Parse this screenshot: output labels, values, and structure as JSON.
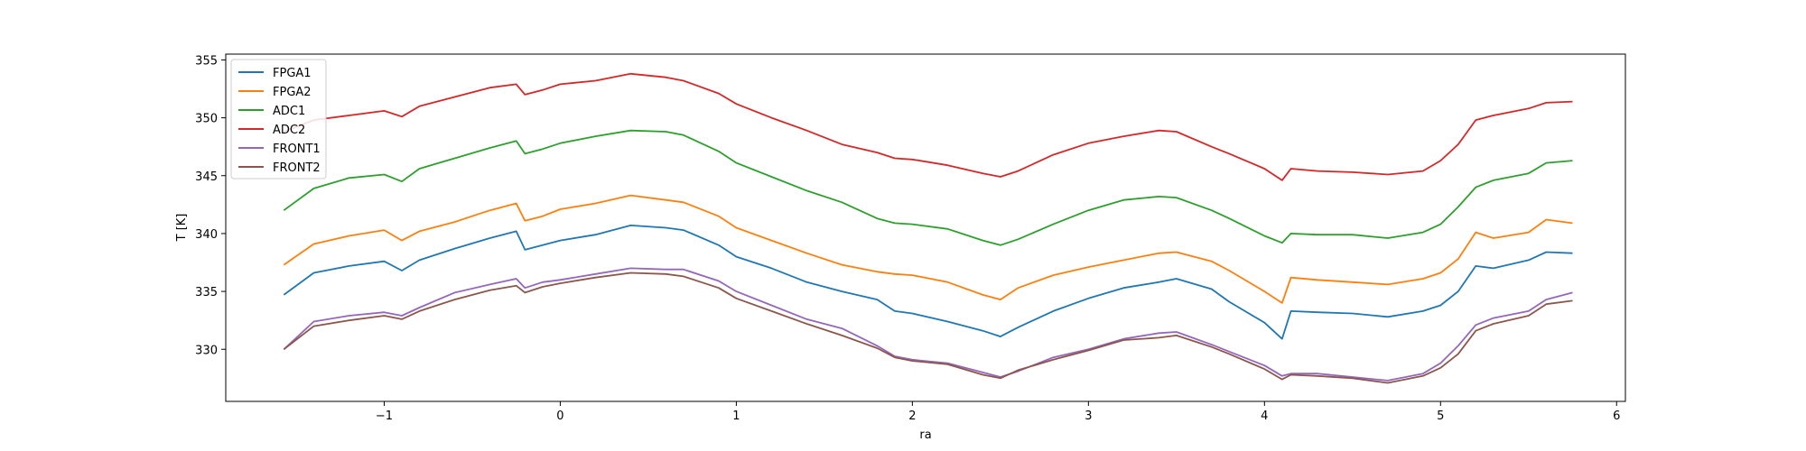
{
  "chart_data": {
    "type": "line",
    "title": "",
    "xlabel": "ra",
    "ylabel": "T [K]",
    "xlim": [
      -1.9,
      6.05
    ],
    "ylim": [
      325.5,
      355.5
    ],
    "xticks": [
      -1,
      0,
      1,
      2,
      3,
      4,
      5,
      6
    ],
    "xtick_labels": [
      "−1",
      "0",
      "1",
      "2",
      "3",
      "4",
      "5",
      "6"
    ],
    "yticks": [
      330,
      335,
      340,
      345,
      350,
      355
    ],
    "ytick_labels": [
      "330",
      "335",
      "340",
      "345",
      "350",
      "355"
    ],
    "grid": false,
    "legend_position": "upper-left",
    "x": [
      -1.57,
      -1.4,
      -1.2,
      -1.0,
      -0.9,
      -0.8,
      -0.6,
      -0.4,
      -0.25,
      -0.2,
      -0.1,
      0.0,
      0.2,
      0.4,
      0.6,
      0.7,
      0.9,
      1.0,
      1.2,
      1.4,
      1.6,
      1.8,
      1.9,
      2.0,
      2.2,
      2.4,
      2.5,
      2.6,
      2.8,
      3.0,
      3.2,
      3.4,
      3.5,
      3.7,
      3.8,
      4.0,
      4.1,
      4.15,
      4.3,
      4.5,
      4.7,
      4.9,
      5.0,
      5.1,
      5.2,
      5.3,
      5.5,
      5.6,
      5.75
    ],
    "series": [
      {
        "name": "FPGA1",
        "color": "#1f77b4",
        "values": [
          334.7,
          336.6,
          337.2,
          337.6,
          336.8,
          337.7,
          338.7,
          339.6,
          340.2,
          338.6,
          339.0,
          339.4,
          339.9,
          340.7,
          340.5,
          340.3,
          339.0,
          338.0,
          337.0,
          335.8,
          335.0,
          334.3,
          333.3,
          333.1,
          332.4,
          331.6,
          331.1,
          331.9,
          333.3,
          334.4,
          335.3,
          335.8,
          336.1,
          335.2,
          334.1,
          332.3,
          330.9,
          333.3,
          333.2,
          333.1,
          332.8,
          333.3,
          333.8,
          335.0,
          337.2,
          337.0,
          337.7,
          338.4,
          338.3
        ]
      },
      {
        "name": "FPGA2",
        "color": "#ff7f0e",
        "values": [
          337.3,
          339.1,
          339.8,
          340.3,
          339.4,
          340.2,
          341.0,
          342.0,
          342.6,
          341.1,
          341.5,
          342.1,
          342.6,
          343.3,
          342.9,
          342.7,
          341.5,
          340.5,
          339.4,
          338.3,
          337.3,
          336.7,
          336.5,
          336.4,
          335.8,
          334.7,
          334.3,
          335.3,
          336.4,
          337.1,
          337.7,
          338.3,
          338.4,
          337.6,
          336.8,
          335.0,
          334.0,
          336.2,
          336.0,
          335.8,
          335.6,
          336.1,
          336.6,
          337.8,
          340.1,
          339.6,
          340.1,
          341.2,
          340.9
        ]
      },
      {
        "name": "ADC1",
        "color": "#2ca02c",
        "values": [
          342.0,
          343.9,
          344.8,
          345.1,
          344.5,
          345.6,
          346.5,
          347.4,
          348.0,
          346.9,
          347.3,
          347.8,
          348.4,
          348.9,
          348.8,
          348.5,
          347.1,
          346.1,
          344.9,
          343.7,
          342.7,
          341.3,
          340.9,
          340.8,
          340.4,
          339.4,
          339.0,
          339.5,
          340.8,
          342.0,
          342.9,
          343.2,
          343.1,
          342.0,
          341.3,
          339.8,
          339.2,
          340.0,
          339.9,
          339.9,
          339.6,
          340.1,
          340.8,
          342.3,
          344.0,
          344.6,
          345.2,
          346.1,
          346.3
        ]
      },
      {
        "name": "ADC2",
        "color": "#d62728",
        "values": [
          348.8,
          349.8,
          350.2,
          350.6,
          350.1,
          351.0,
          351.8,
          352.6,
          352.9,
          352.0,
          352.4,
          352.9,
          353.2,
          353.8,
          353.5,
          353.2,
          352.1,
          351.2,
          350.0,
          348.9,
          347.7,
          347.0,
          346.5,
          346.4,
          345.9,
          345.2,
          344.9,
          345.4,
          346.8,
          347.8,
          348.4,
          348.9,
          348.8,
          347.5,
          346.9,
          345.6,
          344.6,
          345.6,
          345.4,
          345.3,
          345.1,
          345.4,
          346.3,
          347.7,
          349.8,
          350.2,
          350.8,
          351.3,
          351.4
        ]
      },
      {
        "name": "FRONT1",
        "color": "#9467bd",
        "values": [
          330.0,
          332.4,
          332.9,
          333.2,
          332.9,
          333.6,
          334.9,
          335.6,
          336.1,
          335.3,
          335.8,
          336.0,
          336.5,
          337.0,
          336.9,
          336.9,
          335.9,
          335.0,
          333.8,
          332.6,
          331.8,
          330.3,
          329.4,
          329.1,
          328.8,
          328.0,
          327.6,
          328.1,
          329.3,
          330.0,
          330.9,
          331.4,
          331.5,
          330.4,
          329.8,
          328.6,
          327.7,
          327.9,
          327.9,
          327.6,
          327.3,
          327.9,
          328.8,
          330.3,
          332.1,
          332.7,
          333.3,
          334.3,
          334.9
        ]
      },
      {
        "name": "FRONT2",
        "color": "#8c564b",
        "values": [
          330.0,
          332.0,
          332.5,
          332.9,
          332.6,
          333.3,
          334.3,
          335.1,
          335.5,
          334.9,
          335.4,
          335.7,
          336.2,
          336.6,
          336.5,
          336.3,
          335.3,
          334.4,
          333.3,
          332.2,
          331.2,
          330.1,
          329.3,
          329.0,
          328.7,
          327.8,
          327.5,
          328.2,
          329.1,
          329.9,
          330.8,
          331.0,
          331.2,
          330.2,
          329.6,
          328.3,
          327.4,
          327.8,
          327.7,
          327.5,
          327.1,
          327.7,
          328.4,
          329.6,
          331.6,
          332.2,
          332.9,
          333.9,
          334.2
        ]
      }
    ]
  }
}
